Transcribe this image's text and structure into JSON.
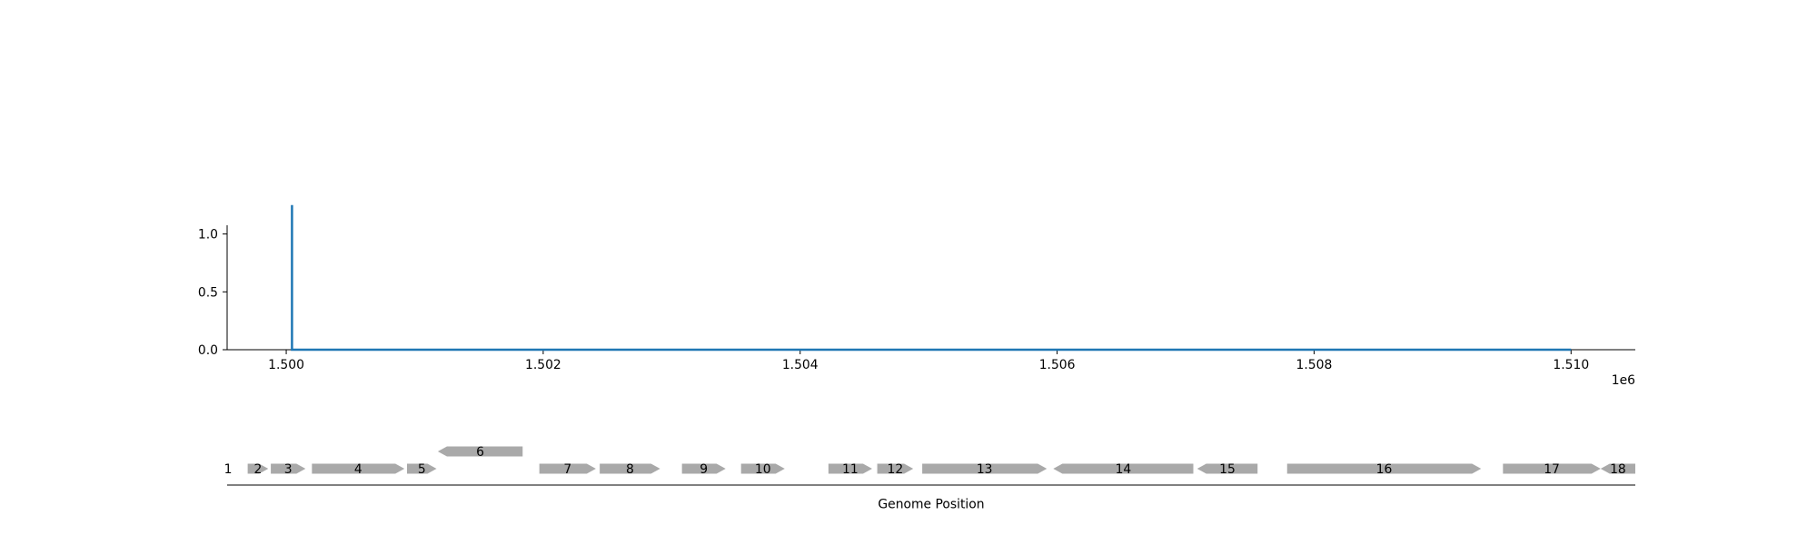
{
  "chart_data": [
    {
      "type": "line",
      "title": "",
      "xlabel": "",
      "ylabel": "",
      "x_offset_label": "1e6",
      "xlim": [
        1499540,
        1510500
      ],
      "ylim": [
        0,
        1.35
      ],
      "grid": false,
      "x_ticks": [
        {
          "value": 1500000,
          "label": "1.500"
        },
        {
          "value": 1502000,
          "label": "1.502"
        },
        {
          "value": 1504000,
          "label": "1.504"
        },
        {
          "value": 1506000,
          "label": "1.506"
        },
        {
          "value": 1508000,
          "label": "1.508"
        },
        {
          "value": 1510000,
          "label": "1.510"
        }
      ],
      "y_ticks": [
        {
          "value": 0.0,
          "label": "0.0"
        },
        {
          "value": 0.5,
          "label": "0.5"
        },
        {
          "value": 1.0,
          "label": "1.0"
        }
      ],
      "series": [
        {
          "color": "#1f77b4",
          "x": [
            1500045,
            1500045,
            1500045,
            1500050,
            1510000
          ],
          "y": [
            0,
            1.25,
            0,
            0,
            0
          ]
        }
      ]
    },
    {
      "type": "gene_track",
      "xlabel": "Genome Position",
      "color": "#a9a9a9",
      "genes": [
        {
          "label": "1",
          "start": 1499540,
          "end": 1499541,
          "strand": 1,
          "row": 0
        },
        {
          "label": "2",
          "start": 1499700,
          "end": 1499860,
          "strand": 1,
          "row": 0
        },
        {
          "label": "3",
          "start": 1499880,
          "end": 1500150,
          "strand": 1,
          "row": 0
        },
        {
          "label": "4",
          "start": 1500200,
          "end": 1500920,
          "strand": 1,
          "row": 0
        },
        {
          "label": "5",
          "start": 1500940,
          "end": 1501170,
          "strand": 1,
          "row": 0
        },
        {
          "label": "6",
          "start": 1501180,
          "end": 1501840,
          "strand": -1,
          "row": 1
        },
        {
          "label": "7",
          "start": 1501970,
          "end": 1502410,
          "strand": 1,
          "row": 0
        },
        {
          "label": "8",
          "start": 1502440,
          "end": 1502910,
          "strand": 1,
          "row": 0
        },
        {
          "label": "9",
          "start": 1503080,
          "end": 1503420,
          "strand": 1,
          "row": 0
        },
        {
          "label": "10",
          "start": 1503540,
          "end": 1503880,
          "strand": 1,
          "row": 0
        },
        {
          "label": "11",
          "start": 1504220,
          "end": 1504560,
          "strand": 1,
          "row": 0
        },
        {
          "label": "12",
          "start": 1504600,
          "end": 1504880,
          "strand": 1,
          "row": 0
        },
        {
          "label": "13",
          "start": 1504950,
          "end": 1505920,
          "strand": 1,
          "row": 0
        },
        {
          "label": "14",
          "start": 1505970,
          "end": 1507060,
          "strand": -1,
          "row": 0
        },
        {
          "label": "15",
          "start": 1507090,
          "end": 1507560,
          "strand": -1,
          "row": 0
        },
        {
          "label": "16",
          "start": 1507790,
          "end": 1509300,
          "strand": 1,
          "row": 0
        },
        {
          "label": "17",
          "start": 1509470,
          "end": 1510230,
          "strand": 1,
          "row": 0
        },
        {
          "label": "18",
          "start": 1510230,
          "end": 1510500,
          "strand": -1,
          "row": 0
        }
      ]
    }
  ]
}
